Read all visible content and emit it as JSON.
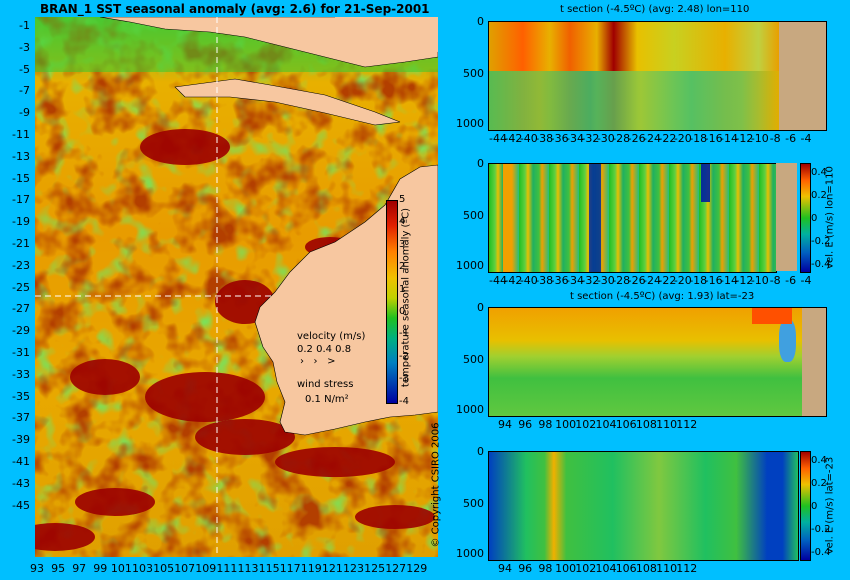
{
  "map": {
    "title": "BRAN_1 SST seasonal anomaly (avg: 2.6) for 21-Sep-2001",
    "y_ticks": [
      "-1",
      "-3",
      "-5",
      "-7",
      "-9",
      "-11",
      "-13",
      "-15",
      "-17",
      "-19",
      "-21",
      "-23",
      "-25",
      "-27",
      "-29",
      "-31",
      "-33",
      "-35",
      "-37",
      "-39",
      "-41",
      "-43",
      "-45"
    ],
    "x_ticks": [
      "93",
      "95",
      "97",
      "99",
      "101",
      "103",
      "105",
      "107",
      "109",
      "111",
      "113",
      "115",
      "117",
      "119",
      "121",
      "123",
      "125",
      "127",
      "129"
    ],
    "colorbar": {
      "label": "temperature seasonal anomaly (ºC)",
      "ticks": [
        "5",
        "4",
        "3",
        "2",
        "1",
        "0",
        "-1",
        "-2",
        "-3",
        "-4"
      ]
    },
    "velocity_legend": {
      "title": "velocity (m/s)",
      "values": "0.2 0.4 0.8"
    },
    "wind_legend": {
      "title": "wind stress",
      "value": "0.1 N/m²"
    },
    "copyright": "© Copyright CSIRO 2006"
  },
  "panels": {
    "p1": {
      "title": "t section (-4.5ºC) (avg: 2.48) lon=110",
      "y_ticks": [
        "0",
        "500",
        "1000"
      ],
      "x_ticks": [
        "-44",
        "-42",
        "-40",
        "-38",
        "-36",
        "-34",
        "-32",
        "-30",
        "-28",
        "-26",
        "-24",
        "-22",
        "-20",
        "-18",
        "-16",
        "-14",
        "-12",
        "-10",
        "-8",
        "-6",
        "-4"
      ]
    },
    "p2": {
      "y_ticks": [
        "0",
        "500",
        "1000"
      ],
      "x_ticks": [
        "-44",
        "-42",
        "-40",
        "-38",
        "-36",
        "-34",
        "-32",
        "-30",
        "-28",
        "-26",
        "-24",
        "-22",
        "-20",
        "-18",
        "-16",
        "-14",
        "-12",
        "-10",
        "-8",
        "-6",
        "-4"
      ],
      "colorbar_label": "vel. E (m/s) lon=110",
      "colorbar_ticks": [
        "0.4",
        "0.2",
        "0",
        "-0.2",
        "-0.4"
      ]
    },
    "p3": {
      "title": "t section (-4.5ºC) (avg: 1.93) lat=-23",
      "y_ticks": [
        "0",
        "500",
        "1000"
      ],
      "x_ticks": [
        "94",
        "96",
        "98",
        "100",
        "102",
        "104",
        "106",
        "108",
        "110",
        "112"
      ]
    },
    "p4": {
      "y_ticks": [
        "0",
        "500",
        "1000"
      ],
      "x_ticks": [
        "94",
        "96",
        "98",
        "100",
        "102",
        "104",
        "106",
        "108",
        "110",
        "112"
      ],
      "colorbar_label": "vel. E (m/s) lat=-23",
      "colorbar_ticks": [
        "0.4",
        "0.2",
        "0",
        "-0.2",
        "-0.4"
      ]
    }
  },
  "colors": {
    "background": "#00bfff",
    "land": "#f7c7a0",
    "warm_anomaly": "#a00000",
    "neutral": "#e0a000",
    "cool": "#20c020",
    "section_land": "#c8a880"
  }
}
